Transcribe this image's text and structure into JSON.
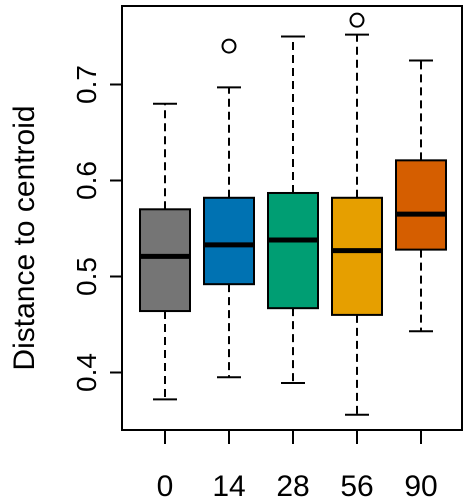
{
  "chart_data": {
    "type": "boxplot",
    "ylabel": "Distance to centroid",
    "xlabel": "",
    "categories": [
      "0",
      "14",
      "28",
      "56",
      "90"
    ],
    "ylim": [
      0.35,
      0.77
    ],
    "yticks": [
      0.4,
      0.5,
      0.6,
      0.7
    ],
    "ytick_labels": [
      "0.4",
      "0.5",
      "0.6",
      "0.7"
    ],
    "grid": false,
    "legend": "none",
    "colors": [
      "#757575",
      "#0072B2",
      "#009E73",
      "#E69F00",
      "#D55E00"
    ],
    "boxes": [
      {
        "category": "0",
        "whisker_low": 0.372,
        "q1": 0.464,
        "median": 0.521,
        "q3": 0.57,
        "whisker_high": 0.68,
        "outliers": []
      },
      {
        "category": "14",
        "whisker_low": 0.395,
        "q1": 0.492,
        "median": 0.533,
        "q3": 0.582,
        "whisker_high": 0.697,
        "outliers": [
          0.74
        ]
      },
      {
        "category": "28",
        "whisker_low": 0.389,
        "q1": 0.467,
        "median": 0.538,
        "q3": 0.587,
        "whisker_high": 0.75,
        "outliers": []
      },
      {
        "category": "56",
        "whisker_low": 0.356,
        "q1": 0.46,
        "median": 0.527,
        "q3": 0.582,
        "whisker_high": 0.752,
        "outliers": [
          0.767
        ]
      },
      {
        "category": "90",
        "whisker_low": 0.443,
        "q1": 0.528,
        "median": 0.565,
        "q3": 0.621,
        "whisker_high": 0.725,
        "outliers": []
      }
    ]
  }
}
